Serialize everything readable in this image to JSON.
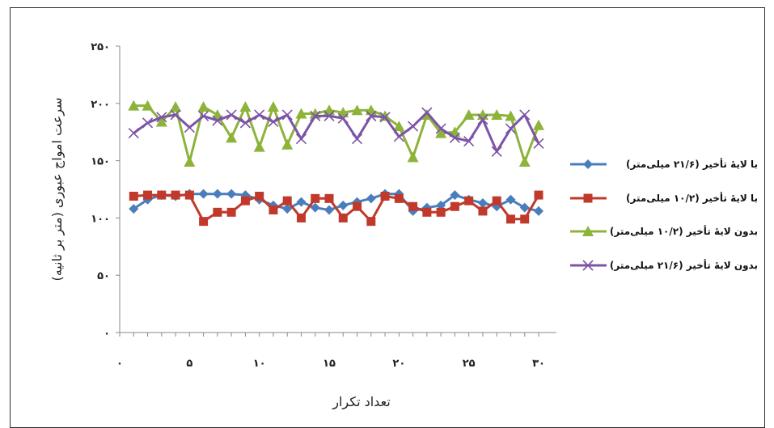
{
  "chart_data": {
    "type": "line",
    "xlabel": "تعداد تکرار",
    "ylabel": "سرعت امواج عبوری (متر بر ثانیه)",
    "xlim": [
      0,
      30
    ],
    "ylim": [
      0,
      250
    ],
    "x_ticks": [
      0,
      5,
      10,
      15,
      20,
      25,
      30
    ],
    "y_ticks": [
      0,
      50,
      100,
      150,
      200,
      250
    ],
    "x_tick_labels": [
      "۰",
      "۵",
      "۱۰",
      "۱۵",
      "۲۰",
      "۲۵",
      "۳۰"
    ],
    "y_tick_labels": [
      "۰",
      "۵۰",
      "۱۰۰",
      "۱۵۰",
      "۲۰۰",
      "۲۵۰"
    ],
    "grid": false,
    "legend_position": "right",
    "x": [
      1,
      2,
      3,
      4,
      5,
      6,
      7,
      8,
      9,
      10,
      11,
      12,
      13,
      14,
      15,
      16,
      17,
      18,
      19,
      20,
      21,
      22,
      23,
      24,
      25,
      26,
      27,
      28,
      29,
      30
    ],
    "series": [
      {
        "name": "با لایهٔ تأخیر (۲۱/۶ میلی‌متر)",
        "color": "#4a7ebb",
        "marker": "diamond",
        "values": [
          108,
          116,
          120,
          119,
          121,
          121,
          121,
          121,
          120,
          116,
          111,
          108,
          114,
          109,
          107,
          111,
          114,
          117,
          121,
          121,
          106,
          109,
          111,
          120,
          116,
          113,
          110,
          116,
          109,
          106
        ]
      },
      {
        "name": "با لایهٔ تأخیر (۱۰/۲ میلی‌متر)",
        "color": "#c0392b",
        "marker": "square",
        "values": [
          119,
          120,
          120,
          120,
          120,
          97,
          105,
          105,
          115,
          119,
          107,
          115,
          100,
          117,
          117,
          100,
          110,
          97,
          119,
          117,
          110,
          105,
          105,
          110,
          115,
          106,
          115,
          99,
          99,
          120
        ]
      },
      {
        "name": "بدون لایهٔ تأخیر (۱۰/۲ میلی‌متر)",
        "color": "#8db33a",
        "marker": "triangle",
        "values": [
          198,
          198,
          184,
          197,
          149,
          197,
          190,
          170,
          197,
          162,
          197,
          164,
          191,
          191,
          194,
          192,
          194,
          194,
          189,
          180,
          153,
          190,
          174,
          175,
          190,
          190,
          190,
          189,
          149,
          181
        ]
      },
      {
        "name": "بدون لایهٔ تأخیر (۲۱/۶ میلی‌متر)",
        "color": "#7c54a6",
        "marker": "x",
        "values": [
          174,
          183,
          188,
          190,
          179,
          189,
          185,
          190,
          183,
          190,
          184,
          190,
          169,
          189,
          189,
          187,
          169,
          189,
          188,
          171,
          180,
          192,
          178,
          170,
          167,
          186,
          158,
          178,
          190,
          165
        ]
      }
    ]
  }
}
